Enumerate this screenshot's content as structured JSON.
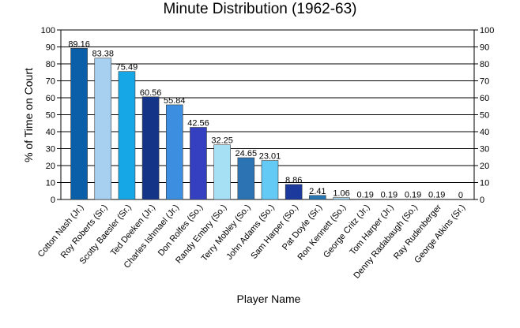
{
  "chart_data": {
    "type": "bar",
    "title": "Minute Distribution (1962-63)",
    "xlabel": "Player Name",
    "ylabel": "% of Time on Court",
    "ylim": [
      0,
      100
    ],
    "yticks": [
      0,
      10,
      20,
      30,
      40,
      50,
      60,
      70,
      80,
      90,
      100
    ],
    "grid": true,
    "legend": "none",
    "categories": [
      "Cotton Nash (Jr.)",
      "Roy Roberts (Sr.)",
      "Scotty Baesler (Sr.)",
      "Ted Deeken (Jr.)",
      "Charles Ishmael (Jr.)",
      "Don Rolfes (So.)",
      "Randy Embry (So.)",
      "Terry Mobley (So.)",
      "John Adams (So.)",
      "Sam Harper (So.)",
      "Pat Doyle (Sr.)",
      "Ron Kennett (So.)",
      "George Critz (Jr.)",
      "Tom Harper (Jr.)",
      "Denny Radabaugh (So.)",
      "Ray Rudenberger",
      "George Atkins (Sr.)"
    ],
    "values": [
      89.16,
      83.38,
      75.49,
      60.56,
      55.84,
      42.56,
      32.25,
      24.65,
      23.01,
      8.86,
      2.41,
      1.06,
      0.19,
      0.19,
      0.19,
      0.19,
      0
    ],
    "data_labels": [
      "89.16",
      "83.38",
      "75.49",
      "60.56",
      "55.84",
      "42.56",
      "32.25",
      "24.65",
      "23.01",
      "8.86",
      "2.41",
      "1.06",
      "0.19",
      "0.19",
      "0.19",
      "0.19",
      "0"
    ],
    "colors": [
      "#0b5fa8",
      "#a6cff0",
      "#16a8e6",
      "#143487",
      "#3c8fe0",
      "#3440c0",
      "#a6e0f5",
      "#2c73b3",
      "#63c9f5",
      "#1c3a9e",
      "#2776b6",
      "#a6dcf5",
      "#3a95dc",
      "#2255a8",
      "#2c6cc0",
      "#1c4aa8",
      "#1f5faa"
    ]
  }
}
